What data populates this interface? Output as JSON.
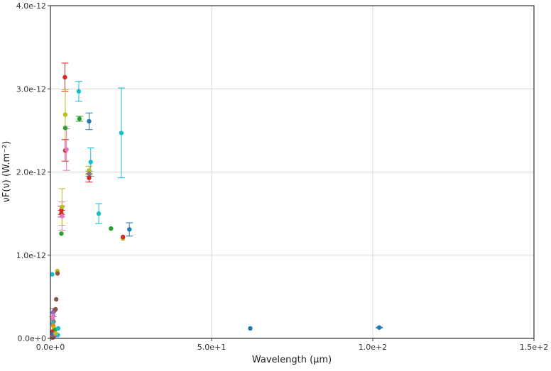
{
  "chart_data": {
    "type": "scatter",
    "title": "",
    "xlabel": "Wavelength (µm)",
    "ylabel": "νF(ν) (W.m⁻²)",
    "xlim": [
      0,
      150
    ],
    "ylim": [
      0,
      4e-12
    ],
    "xticks": [
      0,
      50,
      100,
      150
    ],
    "yticks": [
      0,
      1e-12,
      2e-12,
      3e-12,
      4e-12
    ],
    "xtick_labels": [
      "0.0e+0",
      "5.0e+1",
      "1.0e+2",
      "1.5e+2"
    ],
    "ytick_labels": [
      "0.0e+0",
      "1.0e-12",
      "2.0e-12",
      "3.0e-12",
      "4.0e-12"
    ],
    "grid": true,
    "points": [
      {
        "x": 0.55,
        "y": 7.7e-13,
        "color": "#17becf"
      },
      {
        "x": 2.15,
        "y": 8.1e-13,
        "color": "#bcbd22"
      },
      {
        "x": 2.2,
        "y": 7.8e-13,
        "color": "#8c564b"
      },
      {
        "x": 1.8,
        "y": 4.7e-13,
        "color": "#8c564b"
      },
      {
        "x": 1.6,
        "y": 3.5e-13,
        "color": "#8c564b"
      },
      {
        "x": 1.2,
        "y": 3.3e-13,
        "color": "#8c564b"
      },
      {
        "x": 0.8,
        "y": 3.1e-13,
        "color": "#9467bd",
        "err": 5e-14
      },
      {
        "x": 0.9,
        "y": 2.7e-13,
        "color": "#e377c2"
      },
      {
        "x": 0.7,
        "y": 2.3e-13,
        "color": "#e377c2"
      },
      {
        "x": 1.0,
        "y": 2e-13,
        "color": "#7f7f7f"
      },
      {
        "x": 0.6,
        "y": 1.8e-13,
        "color": "#17becf"
      },
      {
        "x": 0.9,
        "y": 1.5e-13,
        "color": "#ff7f0e"
      },
      {
        "x": 1.1,
        "y": 1.2e-13,
        "color": "#bcbd22"
      },
      {
        "x": 1.4,
        "y": 1e-13,
        "color": "#2ca02c"
      },
      {
        "x": 2.4,
        "y": 1.2e-13,
        "color": "#17becf"
      },
      {
        "x": 2.3,
        "y": 4e-14,
        "color": "#17becf"
      },
      {
        "x": 0.5,
        "y": 8e-14,
        "color": "#d62728"
      },
      {
        "x": 0.8,
        "y": 5e-14,
        "color": "#1f77b4"
      },
      {
        "x": 1.3,
        "y": 3e-14,
        "color": "#9467bd"
      },
      {
        "x": 0.7,
        "y": 1e-14,
        "color": "#8c564b"
      },
      {
        "x": 1.6,
        "y": 6e-14,
        "color": "#bcbd22"
      },
      {
        "x": 3.4,
        "y": 1.26e-12,
        "color": "#2ca02c"
      },
      {
        "x": 3.4,
        "y": 1.5e-12,
        "color": "#d62728",
        "err": 4e-14
      },
      {
        "x": 3.4,
        "y": 1.54e-12,
        "color": "#d62728",
        "err": 5e-14
      },
      {
        "x": 3.6,
        "y": 1.47e-12,
        "color": "#e377c2",
        "err": 1.7e-13
      },
      {
        "x": 3.6,
        "y": 1.58e-12,
        "color": "#bcbd22",
        "err": 2.2e-13
      },
      {
        "x": 4.5,
        "y": 3.14e-12,
        "color": "#d62728",
        "err": 1.7e-13
      },
      {
        "x": 4.6,
        "y": 2.69e-12,
        "color": "#bcbd22",
        "err": 3e-13
      },
      {
        "x": 4.6,
        "y": 2.53e-12,
        "color": "#2ca02c"
      },
      {
        "x": 4.6,
        "y": 2.26e-12,
        "color": "#d62728",
        "err": 1.3e-13
      },
      {
        "x": 5.0,
        "y": 2.27e-12,
        "color": "#e377c2",
        "err": 2.5e-13
      },
      {
        "x": 8.8,
        "y": 2.97e-12,
        "color": "#17becf",
        "err": 1.2e-13
      },
      {
        "x": 9.0,
        "y": 2.64e-12,
        "color": "#2ca02c",
        "err": 3e-14
      },
      {
        "x": 12.0,
        "y": 2.61e-12,
        "color": "#1f77b4",
        "err": 1e-13
      },
      {
        "x": 12.5,
        "y": 2.12e-12,
        "color": "#17becf",
        "err": 1.7e-13
      },
      {
        "x": 12.0,
        "y": 2.02e-12,
        "color": "#bcbd22",
        "err": 5e-14
      },
      {
        "x": 12.0,
        "y": 1.98e-12,
        "color": "#7f7f7f",
        "err": 3e-14
      },
      {
        "x": 12.0,
        "y": 1.93e-12,
        "color": "#d62728",
        "err": 5e-14
      },
      {
        "x": 15.0,
        "y": 1.5e-12,
        "color": "#17becf",
        "err": 1.2e-13
      },
      {
        "x": 18.8,
        "y": 1.32e-12,
        "color": "#2ca02c"
      },
      {
        "x": 22.0,
        "y": 2.47e-12,
        "color": "#17becf",
        "err": 5.4e-13
      },
      {
        "x": 22.5,
        "y": 1.2e-12,
        "color": "#bcbd22"
      },
      {
        "x": 22.5,
        "y": 1.22e-12,
        "color": "#d62728"
      },
      {
        "x": 24.5,
        "y": 1.31e-12,
        "color": "#1f77b4",
        "err": 8e-14
      },
      {
        "x": 62.0,
        "y": 1.2e-13,
        "color": "#1f77b4"
      },
      {
        "x": 102.0,
        "y": 1.3e-13,
        "color": "#1f77b4",
        "err": 5e-15
      }
    ]
  }
}
